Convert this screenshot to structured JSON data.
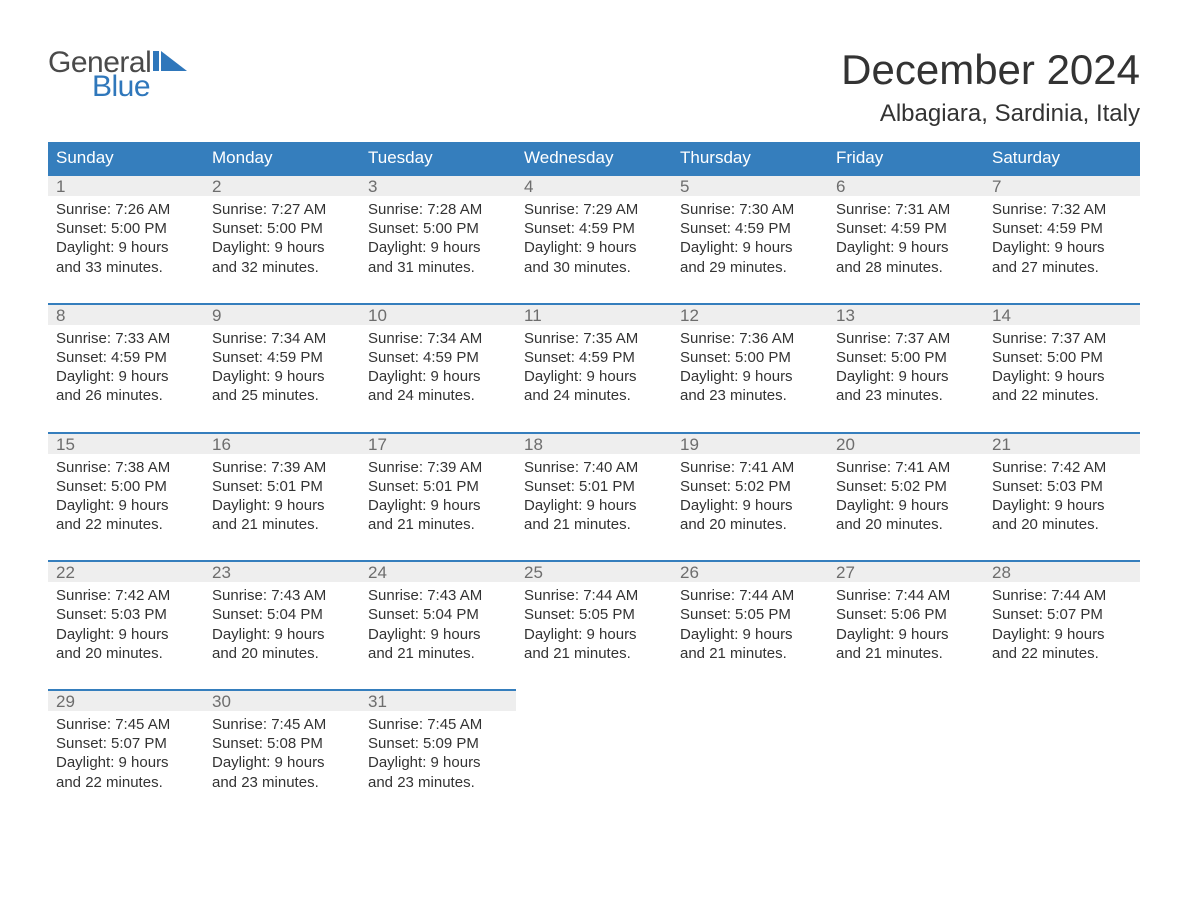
{
  "logo": {
    "word1": "General",
    "word2": "Blue",
    "word1_color": "#4a4a4a",
    "word2_color": "#2f77bb",
    "triangle_color": "#2f77bb"
  },
  "title": "December 2024",
  "location": "Albagiara, Sardinia, Italy",
  "title_fontsize": 42,
  "location_fontsize": 24,
  "header_bg": "#357ebd",
  "header_fg": "#ffffff",
  "daynum_bg": "#eeeeee",
  "daynum_border": "#357ebd",
  "text_color": "#333333",
  "dow": [
    "Sunday",
    "Monday",
    "Tuesday",
    "Wednesday",
    "Thursday",
    "Friday",
    "Saturday"
  ],
  "weeks": [
    [
      {
        "n": "1",
        "sr": "Sunrise: 7:26 AM",
        "ss": "Sunset: 5:00 PM",
        "d1": "Daylight: 9 hours",
        "d2": "and 33 minutes."
      },
      {
        "n": "2",
        "sr": "Sunrise: 7:27 AM",
        "ss": "Sunset: 5:00 PM",
        "d1": "Daylight: 9 hours",
        "d2": "and 32 minutes."
      },
      {
        "n": "3",
        "sr": "Sunrise: 7:28 AM",
        "ss": "Sunset: 5:00 PM",
        "d1": "Daylight: 9 hours",
        "d2": "and 31 minutes."
      },
      {
        "n": "4",
        "sr": "Sunrise: 7:29 AM",
        "ss": "Sunset: 4:59 PM",
        "d1": "Daylight: 9 hours",
        "d2": "and 30 minutes."
      },
      {
        "n": "5",
        "sr": "Sunrise: 7:30 AM",
        "ss": "Sunset: 4:59 PM",
        "d1": "Daylight: 9 hours",
        "d2": "and 29 minutes."
      },
      {
        "n": "6",
        "sr": "Sunrise: 7:31 AM",
        "ss": "Sunset: 4:59 PM",
        "d1": "Daylight: 9 hours",
        "d2": "and 28 minutes."
      },
      {
        "n": "7",
        "sr": "Sunrise: 7:32 AM",
        "ss": "Sunset: 4:59 PM",
        "d1": "Daylight: 9 hours",
        "d2": "and 27 minutes."
      }
    ],
    [
      {
        "n": "8",
        "sr": "Sunrise: 7:33 AM",
        "ss": "Sunset: 4:59 PM",
        "d1": "Daylight: 9 hours",
        "d2": "and 26 minutes."
      },
      {
        "n": "9",
        "sr": "Sunrise: 7:34 AM",
        "ss": "Sunset: 4:59 PM",
        "d1": "Daylight: 9 hours",
        "d2": "and 25 minutes."
      },
      {
        "n": "10",
        "sr": "Sunrise: 7:34 AM",
        "ss": "Sunset: 4:59 PM",
        "d1": "Daylight: 9 hours",
        "d2": "and 24 minutes."
      },
      {
        "n": "11",
        "sr": "Sunrise: 7:35 AM",
        "ss": "Sunset: 4:59 PM",
        "d1": "Daylight: 9 hours",
        "d2": "and 24 minutes."
      },
      {
        "n": "12",
        "sr": "Sunrise: 7:36 AM",
        "ss": "Sunset: 5:00 PM",
        "d1": "Daylight: 9 hours",
        "d2": "and 23 minutes."
      },
      {
        "n": "13",
        "sr": "Sunrise: 7:37 AM",
        "ss": "Sunset: 5:00 PM",
        "d1": "Daylight: 9 hours",
        "d2": "and 23 minutes."
      },
      {
        "n": "14",
        "sr": "Sunrise: 7:37 AM",
        "ss": "Sunset: 5:00 PM",
        "d1": "Daylight: 9 hours",
        "d2": "and 22 minutes."
      }
    ],
    [
      {
        "n": "15",
        "sr": "Sunrise: 7:38 AM",
        "ss": "Sunset: 5:00 PM",
        "d1": "Daylight: 9 hours",
        "d2": "and 22 minutes."
      },
      {
        "n": "16",
        "sr": "Sunrise: 7:39 AM",
        "ss": "Sunset: 5:01 PM",
        "d1": "Daylight: 9 hours",
        "d2": "and 21 minutes."
      },
      {
        "n": "17",
        "sr": "Sunrise: 7:39 AM",
        "ss": "Sunset: 5:01 PM",
        "d1": "Daylight: 9 hours",
        "d2": "and 21 minutes."
      },
      {
        "n": "18",
        "sr": "Sunrise: 7:40 AM",
        "ss": "Sunset: 5:01 PM",
        "d1": "Daylight: 9 hours",
        "d2": "and 21 minutes."
      },
      {
        "n": "19",
        "sr": "Sunrise: 7:41 AM",
        "ss": "Sunset: 5:02 PM",
        "d1": "Daylight: 9 hours",
        "d2": "and 20 minutes."
      },
      {
        "n": "20",
        "sr": "Sunrise: 7:41 AM",
        "ss": "Sunset: 5:02 PM",
        "d1": "Daylight: 9 hours",
        "d2": "and 20 minutes."
      },
      {
        "n": "21",
        "sr": "Sunrise: 7:42 AM",
        "ss": "Sunset: 5:03 PM",
        "d1": "Daylight: 9 hours",
        "d2": "and 20 minutes."
      }
    ],
    [
      {
        "n": "22",
        "sr": "Sunrise: 7:42 AM",
        "ss": "Sunset: 5:03 PM",
        "d1": "Daylight: 9 hours",
        "d2": "and 20 minutes."
      },
      {
        "n": "23",
        "sr": "Sunrise: 7:43 AM",
        "ss": "Sunset: 5:04 PM",
        "d1": "Daylight: 9 hours",
        "d2": "and 20 minutes."
      },
      {
        "n": "24",
        "sr": "Sunrise: 7:43 AM",
        "ss": "Sunset: 5:04 PM",
        "d1": "Daylight: 9 hours",
        "d2": "and 21 minutes."
      },
      {
        "n": "25",
        "sr": "Sunrise: 7:44 AM",
        "ss": "Sunset: 5:05 PM",
        "d1": "Daylight: 9 hours",
        "d2": "and 21 minutes."
      },
      {
        "n": "26",
        "sr": "Sunrise: 7:44 AM",
        "ss": "Sunset: 5:05 PM",
        "d1": "Daylight: 9 hours",
        "d2": "and 21 minutes."
      },
      {
        "n": "27",
        "sr": "Sunrise: 7:44 AM",
        "ss": "Sunset: 5:06 PM",
        "d1": "Daylight: 9 hours",
        "d2": "and 21 minutes."
      },
      {
        "n": "28",
        "sr": "Sunrise: 7:44 AM",
        "ss": "Sunset: 5:07 PM",
        "d1": "Daylight: 9 hours",
        "d2": "and 22 minutes."
      }
    ],
    [
      {
        "n": "29",
        "sr": "Sunrise: 7:45 AM",
        "ss": "Sunset: 5:07 PM",
        "d1": "Daylight: 9 hours",
        "d2": "and 22 minutes."
      },
      {
        "n": "30",
        "sr": "Sunrise: 7:45 AM",
        "ss": "Sunset: 5:08 PM",
        "d1": "Daylight: 9 hours",
        "d2": "and 23 minutes."
      },
      {
        "n": "31",
        "sr": "Sunrise: 7:45 AM",
        "ss": "Sunset: 5:09 PM",
        "d1": "Daylight: 9 hours",
        "d2": "and 23 minutes."
      },
      null,
      null,
      null,
      null
    ]
  ]
}
